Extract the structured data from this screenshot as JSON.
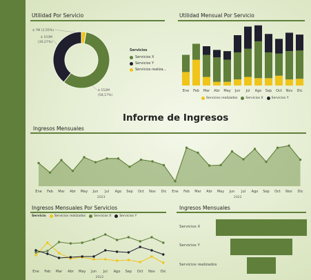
{
  "colors": {
    "accent": "#5f7f3a",
    "x": "#5f7f3a",
    "y": "#1f1f2e",
    "realizados": "#f0c419"
  },
  "donut": {
    "title": "Utilidad Por Servicio",
    "legend_title": "Servicios",
    "labels": {
      "top": "$ 7M (2,55%)",
      "left": "$ 103M\n(39,27%)",
      "right": "$ 152M\n(58,17%)"
    },
    "legend": [
      "Servicios X",
      "Servicios Y",
      "Servicios realiza..."
    ]
  },
  "monthly_bar": {
    "title": "Utilidad Mensual Por Servicio",
    "months": [
      "Ene",
      "Feb",
      "Mar",
      "Abr",
      "May",
      "Jun",
      "Jul",
      "Ago",
      "Sep",
      "Oct",
      "Nov",
      "Dic"
    ],
    "legend": [
      "Servicios realizados",
      "Servicios X",
      "Servicios Y"
    ]
  },
  "report": {
    "title": "Informe de Ingresos"
  },
  "ingresos_mensuales": {
    "title": "Ingresos Mensuales",
    "months": [
      "Ene",
      "Feb",
      "Mar",
      "Abr",
      "May",
      "Jun",
      "Jul",
      "Ago",
      "Sep",
      "Oct",
      "Nov",
      "Dic",
      "Ene",
      "Feb",
      "Mar",
      "Abr",
      "May",
      "Jun",
      "Jul",
      "Ago",
      "Sep",
      "Oct",
      "Nov",
      "Dic"
    ],
    "years": [
      "2023",
      "2022"
    ]
  },
  "ingresos_servicios": {
    "title": "Ingresos Mensuales Por Servicios",
    "legend_title": "Servicio",
    "legend": [
      "Servicios realizados",
      "Servicios X",
      "Servicios Y"
    ],
    "months": [
      "Ene",
      "Feb",
      "Mar",
      "Abr",
      "May",
      "Jun",
      "Jul",
      "Ago",
      "Sep",
      "Oct",
      "Nov",
      "Dic"
    ],
    "year": "2022"
  },
  "funnel": {
    "title": "Ingresos Mensuales",
    "labels": [
      "Servicios X",
      "Servicios Y",
      "Servicios realizados"
    ]
  },
  "chart_data": [
    {
      "type": "pie",
      "title": "Utilidad Por Servicio",
      "categories": [
        "Servicios X",
        "Servicios Y",
        "Servicios realizados"
      ],
      "values": [
        152,
        103,
        7
      ],
      "percent": [
        58.17,
        39.27,
        2.55
      ]
    },
    {
      "type": "bar",
      "title": "Utilidad Mensual Por Servicio",
      "stacked": true,
      "categories": [
        "Ene",
        "Feb",
        "Mar",
        "Abr",
        "May",
        "Jun",
        "Jul",
        "Ago",
        "Sep",
        "Oct",
        "Nov",
        "Dic"
      ],
      "ylim": [
        0,
        100
      ],
      "series": [
        {
          "name": "Servicios realizados",
          "values": [
            22,
            42,
            14,
            6,
            6,
            10,
            14,
            12,
            12,
            16,
            10,
            11
          ]
        },
        {
          "name": "Servicios X",
          "values": [
            28,
            26,
            36,
            40,
            36,
            44,
            46,
            60,
            42,
            36,
            46,
            46
          ]
        },
        {
          "name": "Servicios Y",
          "values": [
            0,
            0,
            14,
            12,
            14,
            28,
            36,
            26,
            30,
            24,
            30,
            26
          ]
        }
      ]
    },
    {
      "type": "area",
      "title": "Ingresos Mensuales",
      "categories": [
        "Ene",
        "Feb",
        "Mar",
        "Abr",
        "May",
        "Jun",
        "Jul",
        "Ago",
        "Sep",
        "Oct",
        "Nov",
        "Dic",
        "Ene",
        "Feb",
        "Mar",
        "Abr",
        "May",
        "Jun",
        "Jul",
        "Ago",
        "Sep",
        "Oct",
        "Nov",
        "Dic"
      ],
      "values": [
        56,
        33,
        63,
        37,
        70,
        58,
        67,
        67,
        47,
        64,
        60,
        51,
        12,
        93,
        81,
        50,
        51,
        84,
        65,
        90,
        59,
        93,
        98,
        64
      ],
      "ylim": [
        0,
        110
      ]
    },
    {
      "type": "line",
      "title": "Ingresos Mensuales Por Servicios",
      "categories": [
        "Ene",
        "Feb",
        "Mar",
        "Abr",
        "May",
        "Jun",
        "Jul",
        "Ago",
        "Sep",
        "Oct",
        "Nov",
        "Dic"
      ],
      "ylim": [
        0,
        100
      ],
      "series": [
        {
          "name": "Servicios realizados",
          "values": [
            32,
            68,
            38,
            22,
            26,
            20,
            20,
            16,
            18,
            12,
            28,
            10
          ]
        },
        {
          "name": "Servicios X",
          "values": [
            40,
            44,
            70,
            66,
            68,
            78,
            92,
            76,
            84,
            72,
            84,
            68
          ]
        },
        {
          "name": "Servicios Y",
          "values": [
            46,
            36,
            24,
            26,
            28,
            28,
            46,
            42,
            40,
            56,
            46,
            34
          ]
        }
      ]
    },
    {
      "type": "bar",
      "title": "Ingresos Mensuales",
      "orientation": "horizontal",
      "categories": [
        "Servicios X",
        "Servicios Y",
        "Servicios realizados"
      ],
      "values": [
        152,
        103,
        48
      ]
    }
  ]
}
